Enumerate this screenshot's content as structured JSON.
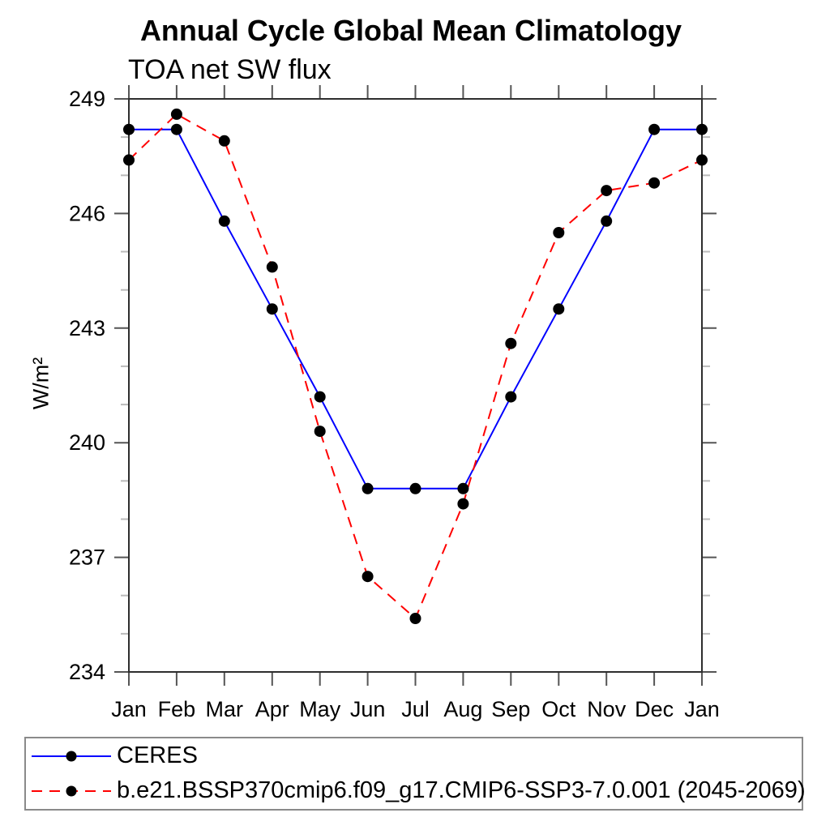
{
  "title": "Annual Cycle Global Mean Climatology",
  "subtitle": "TOA net SW flux",
  "chart_data": {
    "type": "line",
    "categories": [
      "Jan",
      "Feb",
      "Mar",
      "Apr",
      "May",
      "Jun",
      "Jul",
      "Aug",
      "Sep",
      "Oct",
      "Nov",
      "Dec",
      "Jan"
    ],
    "xlabel": "",
    "ylabel": "W/m²",
    "ylim": [
      234,
      249
    ],
    "y_major_ticks": [
      234,
      237,
      240,
      243,
      246,
      249
    ],
    "y_minor_tick_step": 1,
    "grid": false,
    "legend_position": "bottom-left-box",
    "marker_color": "#000000",
    "series": [
      {
        "name": "CERES",
        "color": "#0000ff",
        "line_style": "solid",
        "marker": "circle",
        "values": [
          248.2,
          248.2,
          245.8,
          243.5,
          241.2,
          238.8,
          238.8,
          238.8,
          241.2,
          243.5,
          245.8,
          248.2,
          248.2
        ]
      },
      {
        "name": "b.e21.BSSP370cmip6.f09_g17.CMIP6-SSP3-7.0.001 (2045-2069)",
        "color": "#ff0000",
        "line_style": "dashed",
        "marker": "circle",
        "values": [
          247.4,
          248.6,
          247.9,
          244.6,
          240.3,
          236.5,
          235.4,
          238.4,
          242.6,
          245.5,
          246.6,
          246.8,
          247.4
        ]
      }
    ]
  }
}
